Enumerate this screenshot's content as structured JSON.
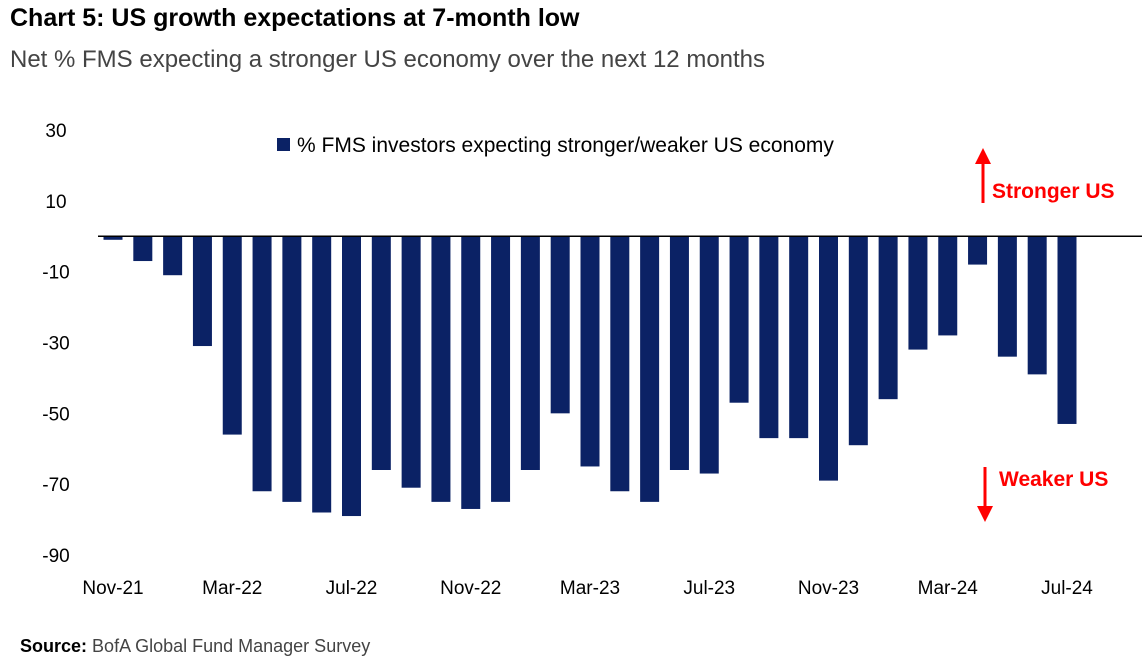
{
  "title": "Chart 5: US growth expectations at 7-month low",
  "subtitle": "Net % FMS expecting a stronger US economy over the next 12 months",
  "source_label": "Source:",
  "source_text": "BofA Global Fund Manager Survey",
  "colors": {
    "bar": "#0b2265",
    "annotation": "#ff0000",
    "axis": "#000000"
  },
  "chart_data": {
    "type": "bar",
    "title": "Chart 5: US growth expectations at 7-month low",
    "xlabel": "",
    "ylabel": "",
    "ylim": [
      -90,
      30
    ],
    "yticks": [
      30,
      10,
      -10,
      -30,
      -50,
      -70,
      -90
    ],
    "grid": false,
    "legend": "top-center",
    "categories": [
      "Nov-21",
      "Dec-21",
      "Jan-22",
      "Feb-22",
      "Mar-22",
      "Apr-22",
      "May-22",
      "Jun-22",
      "Jul-22",
      "Aug-22",
      "Sep-22",
      "Oct-22",
      "Nov-22",
      "Dec-22",
      "Jan-23",
      "Feb-23",
      "Mar-23",
      "Apr-23",
      "May-23",
      "Jun-23",
      "Jul-23",
      "Aug-23",
      "Sep-23",
      "Oct-23",
      "Nov-23",
      "Dec-23",
      "Jan-24",
      "Feb-24",
      "Mar-24",
      "Apr-24",
      "May-24",
      "Jun-24",
      "Jul-24"
    ],
    "xtick_labels": [
      "Nov-21",
      "Mar-22",
      "Jul-22",
      "Nov-22",
      "Mar-23",
      "Jul-23",
      "Nov-23",
      "Mar-24",
      "Jul-24"
    ],
    "series": [
      {
        "name": "% FMS investors expecting stronger/weaker US economy",
        "values": [
          -1,
          -7,
          -11,
          -31,
          -56,
          -72,
          -75,
          -78,
          -79,
          -66,
          -71,
          -75,
          -77,
          -75,
          -66,
          -50,
          -65,
          -72,
          -75,
          -66,
          -67,
          -47,
          -57,
          -57,
          -69,
          -59,
          -46,
          -32,
          -28,
          -8,
          -34,
          -39,
          -53
        ]
      }
    ],
    "annotations": {
      "up": "Stronger US",
      "down": "Weaker US"
    }
  }
}
